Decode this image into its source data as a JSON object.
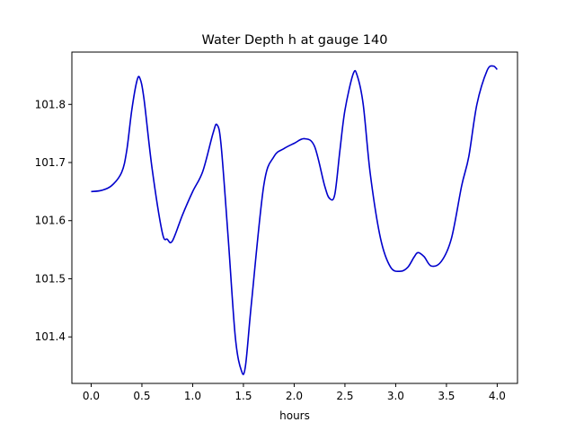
{
  "chart_data": {
    "type": "line",
    "title": "Water Depth h at gauge 140",
    "xlabel": "hours",
    "ylabel": "",
    "xlim": [
      -0.19,
      4.2
    ],
    "ylim": [
      101.32,
      101.89
    ],
    "xticks": [
      0.0,
      0.5,
      1.0,
      1.5,
      2.0,
      2.5,
      3.0,
      3.5,
      4.0
    ],
    "xtick_labels": [
      "0.0",
      "0.5",
      "1.0",
      "1.5",
      "2.0",
      "2.5",
      "3.0",
      "3.5",
      "4.0"
    ],
    "yticks": [
      101.4,
      101.5,
      101.6,
      101.7,
      101.8
    ],
    "ytick_labels": [
      "101.4",
      "101.5",
      "101.6",
      "101.7",
      "101.8"
    ],
    "grid": false,
    "series": [
      {
        "color": "#0000cc",
        "x": [
          0.0,
          0.1,
          0.2,
          0.3,
          0.35,
          0.4,
          0.45,
          0.48,
          0.52,
          0.6,
          0.7,
          0.75,
          0.8,
          0.9,
          1.0,
          1.1,
          1.2,
          1.24,
          1.28,
          1.35,
          1.42,
          1.48,
          1.52,
          1.58,
          1.7,
          1.8,
          1.9,
          2.0,
          2.1,
          2.2,
          2.3,
          2.35,
          2.4,
          2.45,
          2.5,
          2.58,
          2.62,
          2.68,
          2.75,
          2.85,
          2.95,
          3.05,
          3.12,
          3.18,
          3.22,
          3.28,
          3.35,
          3.45,
          3.55,
          3.65,
          3.72,
          3.8,
          3.9,
          3.96,
          4.0
        ],
        "y": [
          101.65,
          101.652,
          101.66,
          101.683,
          101.72,
          101.79,
          101.84,
          101.845,
          101.81,
          101.69,
          101.58,
          101.568,
          101.565,
          101.61,
          101.65,
          101.685,
          101.75,
          101.765,
          101.73,
          101.57,
          101.4,
          101.342,
          101.35,
          101.46,
          101.66,
          101.71,
          101.724,
          101.733,
          101.741,
          101.728,
          101.66,
          101.638,
          101.645,
          101.72,
          101.79,
          101.852,
          101.85,
          101.8,
          101.68,
          101.57,
          101.52,
          101.513,
          101.52,
          101.537,
          101.545,
          101.538,
          101.522,
          101.53,
          101.57,
          101.66,
          101.71,
          101.8,
          101.858,
          101.866,
          101.86
        ]
      }
    ]
  }
}
